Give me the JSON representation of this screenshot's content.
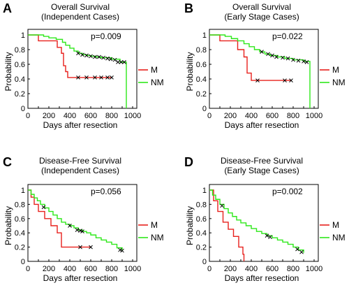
{
  "xlabel": "Days after resection",
  "ylabel": "Probability",
  "colors": {
    "M": "#e8201c",
    "NM": "#2ee81a",
    "censor": "#000000",
    "axis": "#000000"
  },
  "chart_data": [
    {
      "letter": "A",
      "type": "line",
      "title": "Overall Survival",
      "subtitle": "(Independent Cases)",
      "pvalue": "p=0.009",
      "xlim": [
        0,
        1000
      ],
      "ylim": [
        0,
        1
      ],
      "xticks": [
        "0",
        "100",
        "200",
        "300",
        "400",
        "500",
        "600",
        "700",
        "800",
        "900",
        "1000"
      ],
      "yticks": [
        "0",
        "0.2",
        "0.4",
        "0.6",
        "0.8",
        "1"
      ],
      "series": [
        {
          "name": "M",
          "x": [
            0,
            100,
            280,
            320,
            340,
            360,
            380,
            800
          ],
          "y": [
            1,
            0.92,
            0.83,
            0.75,
            0.58,
            0.5,
            0.42,
            0.42
          ],
          "censors": [
            [
              480,
              0.42
            ],
            [
              560,
              0.42
            ],
            [
              640,
              0.42
            ],
            [
              700,
              0.42
            ],
            [
              760,
              0.42
            ],
            [
              800,
              0.42
            ]
          ]
        },
        {
          "name": "NM",
          "x": [
            0,
            150,
            200,
            270,
            330,
            360,
            400,
            440,
            480,
            520,
            560,
            600,
            650,
            700,
            800,
            880,
            940,
            940
          ],
          "y": [
            1,
            0.98,
            0.96,
            0.94,
            0.9,
            0.86,
            0.82,
            0.78,
            0.75,
            0.73,
            0.72,
            0.71,
            0.7,
            0.69,
            0.67,
            0.63,
            0.63,
            0
          ],
          "censors": [
            [
              480,
              0.75
            ],
            [
              520,
              0.73
            ],
            [
              560,
              0.72
            ],
            [
              600,
              0.71
            ],
            [
              640,
              0.7
            ],
            [
              680,
              0.7
            ],
            [
              720,
              0.69
            ],
            [
              760,
              0.68
            ],
            [
              790,
              0.67
            ],
            [
              830,
              0.66
            ],
            [
              860,
              0.63
            ],
            [
              890,
              0.63
            ],
            [
              920,
              0.63
            ]
          ]
        }
      ]
    },
    {
      "letter": "B",
      "type": "line",
      "title": "Overall Survival",
      "subtitle": "(Early Stage Cases)",
      "pvalue": "p=0.022",
      "xlim": [
        0,
        1000
      ],
      "ylim": [
        0,
        1
      ],
      "xticks": [
        "0",
        "100",
        "200",
        "300",
        "400",
        "500",
        "600",
        "700",
        "800",
        "900",
        "1000"
      ],
      "yticks": [
        "0",
        "0.2",
        "0.4",
        "0.6",
        "0.8",
        "1"
      ],
      "series": [
        {
          "name": "M",
          "x": [
            0,
            100,
            270,
            330,
            360,
            400,
            780
          ],
          "y": [
            1,
            0.92,
            0.8,
            0.7,
            0.48,
            0.38,
            0.38
          ],
          "censors": [
            [
              460,
              0.38
            ],
            [
              720,
              0.38
            ],
            [
              780,
              0.38
            ]
          ]
        },
        {
          "name": "NM",
          "x": [
            0,
            150,
            210,
            270,
            330,
            380,
            430,
            480,
            530,
            580,
            650,
            720,
            800,
            900,
            960,
            960
          ],
          "y": [
            1,
            0.98,
            0.95,
            0.92,
            0.88,
            0.84,
            0.8,
            0.77,
            0.74,
            0.72,
            0.7,
            0.68,
            0.66,
            0.64,
            0.63,
            0
          ],
          "censors": [
            [
              500,
              0.77
            ],
            [
              560,
              0.74
            ],
            [
              600,
              0.72
            ],
            [
              640,
              0.7
            ],
            [
              700,
              0.69
            ],
            [
              750,
              0.68
            ],
            [
              800,
              0.66
            ],
            [
              850,
              0.65
            ],
            [
              900,
              0.64
            ],
            [
              930,
              0.63
            ]
          ]
        }
      ]
    },
    {
      "letter": "C",
      "type": "line",
      "title": "Disease-Free Survival",
      "subtitle": "(Independent Cases)",
      "pvalue": "p=0.056",
      "xlim": [
        0,
        1000
      ],
      "ylim": [
        0,
        1
      ],
      "xticks": [
        "0",
        "100",
        "200",
        "300",
        "400",
        "500",
        "600",
        "700",
        "800",
        "900",
        "1000"
      ],
      "yticks": [
        "0",
        "0.2",
        "0.4",
        "0.6",
        "0.8",
        "1"
      ],
      "series": [
        {
          "name": "M",
          "x": [
            0,
            30,
            60,
            100,
            160,
            220,
            280,
            320,
            600
          ],
          "y": [
            1,
            0.9,
            0.8,
            0.7,
            0.6,
            0.5,
            0.4,
            0.2,
            0.2
          ],
          "censors": [
            [
              500,
              0.2
            ],
            [
              600,
              0.2
            ]
          ]
        },
        {
          "name": "NM",
          "x": [
            0,
            30,
            60,
            90,
            120,
            160,
            200,
            240,
            280,
            320,
            360,
            400,
            440,
            480,
            520,
            560,
            600,
            650,
            700,
            750,
            800,
            850,
            900
          ],
          "y": [
            1,
            0.94,
            0.89,
            0.85,
            0.8,
            0.75,
            0.7,
            0.65,
            0.6,
            0.55,
            0.52,
            0.5,
            0.47,
            0.44,
            0.42,
            0.4,
            0.37,
            0.33,
            0.3,
            0.27,
            0.24,
            0.19,
            0.15
          ],
          "censors": [
            [
              150,
              0.76
            ],
            [
              400,
              0.5
            ],
            [
              470,
              0.44
            ],
            [
              500,
              0.43
            ],
            [
              520,
              0.42
            ],
            [
              880,
              0.16
            ],
            [
              900,
              0.15
            ]
          ]
        }
      ]
    },
    {
      "letter": "D",
      "type": "line",
      "title": "Disease-Free Survival",
      "subtitle": "(Early Stage Cases)",
      "pvalue": "p=0.002",
      "xlim": [
        0,
        1000
      ],
      "ylim": [
        0,
        1
      ],
      "xticks": [
        "0",
        "100",
        "200",
        "300",
        "400",
        "500",
        "600",
        "700",
        "800",
        "900",
        "1000"
      ],
      "yticks": [
        "0",
        "0.2",
        "0.4",
        "0.6",
        "0.8",
        "1"
      ],
      "series": [
        {
          "name": "M",
          "x": [
            0,
            40,
            80,
            130,
            180,
            230,
            280,
            320,
            330
          ],
          "y": [
            1,
            0.85,
            0.7,
            0.55,
            0.45,
            0.35,
            0.2,
            0.1,
            0
          ],
          "censors": []
        },
        {
          "name": "NM",
          "x": [
            0,
            30,
            60,
            100,
            140,
            180,
            220,
            260,
            300,
            350,
            400,
            450,
            500,
            550,
            600,
            650,
            700,
            750,
            800,
            850,
            900
          ],
          "y": [
            1,
            0.93,
            0.87,
            0.8,
            0.74,
            0.68,
            0.63,
            0.58,
            0.54,
            0.5,
            0.46,
            0.42,
            0.39,
            0.36,
            0.33,
            0.3,
            0.27,
            0.24,
            0.2,
            0.16,
            0.12
          ],
          "censors": [
            [
              120,
              0.78
            ],
            [
              550,
              0.36
            ],
            [
              580,
              0.34
            ],
            [
              840,
              0.17
            ],
            [
              880,
              0.13
            ]
          ]
        }
      ]
    }
  ]
}
